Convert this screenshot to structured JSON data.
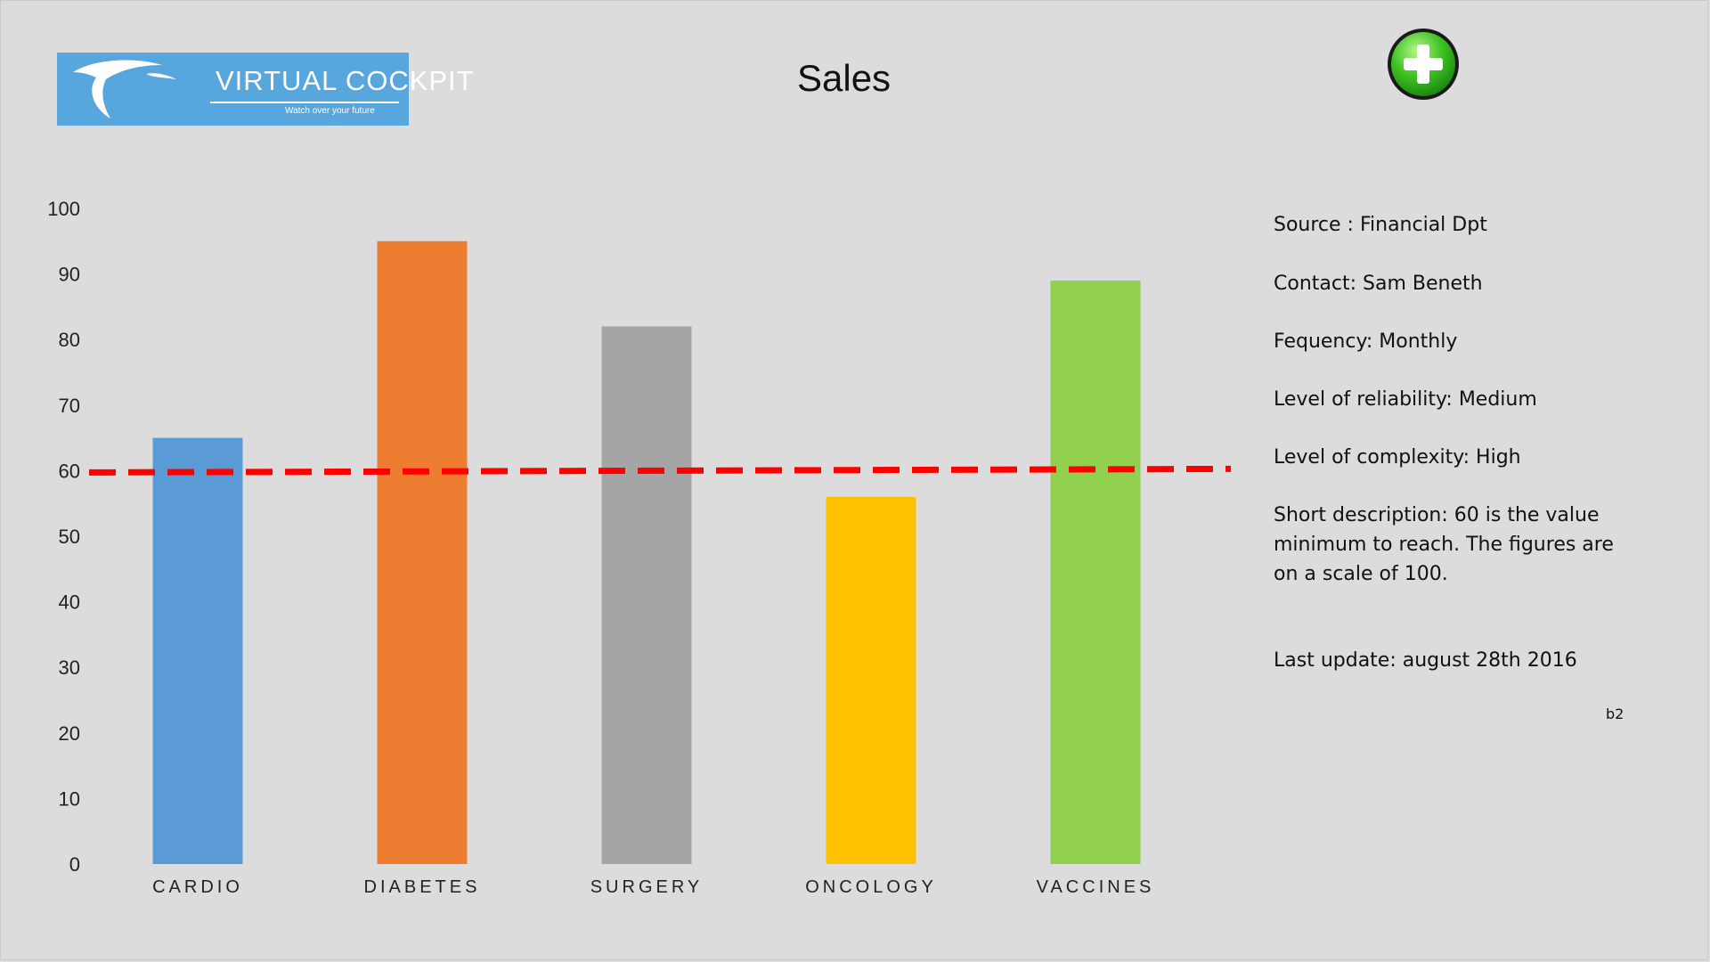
{
  "logo": {
    "title": "VIRTUAL COCKPIT",
    "tagline": "Watch over your future",
    "color": "#58a6de"
  },
  "header": {
    "title": "Sales",
    "add_icon": "plus-circle-icon",
    "add_color": "#2db61e"
  },
  "chart_data": {
    "type": "bar",
    "title": "Sales",
    "categories": [
      "CARDIO",
      "DIABETES",
      "SURGERY",
      "ONCOLOGY",
      "VACCINES"
    ],
    "values": [
      65,
      95,
      82,
      56,
      89
    ],
    "colors": [
      "#5b9bd5",
      "#ed7d31",
      "#a5a5a5",
      "#ffc000",
      "#92d050"
    ],
    "ylim": [
      0,
      100
    ],
    "yticks": [
      0,
      10,
      20,
      30,
      40,
      50,
      60,
      70,
      80,
      90,
      100
    ],
    "threshold": {
      "value": 60,
      "color": "#ff0000",
      "style": "dashed"
    },
    "grid": false,
    "legend": false
  },
  "info": {
    "source": "Source : Financial Dpt",
    "contact": "Contact: Sam Beneth",
    "frequency": "Fequency: Monthly",
    "reliability": "Level of reliability: Medium",
    "complexity": "Level of complexity:  High",
    "description": "Short description: 60 is the value minimum to reach. The figures are on a scale of 100.",
    "last_update": "Last update:  august 28th  2016",
    "code": "b2"
  }
}
